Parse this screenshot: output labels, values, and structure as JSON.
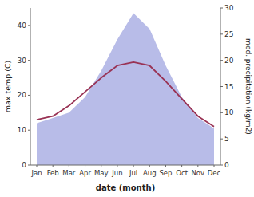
{
  "chart_data": {
    "type": "line",
    "xlabel": "date (month)",
    "ylabel": "max temp (C)",
    "y2label": "med. precipitation (kg/m2)",
    "categories": [
      "Jan",
      "Feb",
      "Mar",
      "Apr",
      "May",
      "Jun",
      "Jul",
      "Aug",
      "Sep",
      "Oct",
      "Nov",
      "Dec"
    ],
    "series": [
      {
        "type": "area",
        "axis": "y2",
        "color": "#b8bce8",
        "values": [
          8,
          9,
          10,
          13,
          18,
          24,
          29,
          26,
          19,
          13,
          9,
          7
        ]
      },
      {
        "type": "line",
        "color": "#993355",
        "values": [
          13.0,
          14.0,
          17.0,
          21.0,
          25.0,
          28.5,
          29.5,
          28.5,
          24.0,
          19.0,
          14.0,
          11.0
        ]
      }
    ],
    "ylim": [
      0,
      45
    ],
    "yticks": [
      0,
      10,
      20,
      30,
      40
    ],
    "y2lim": [
      0,
      30
    ],
    "y2ticks": [
      0,
      5,
      10,
      15,
      20,
      25,
      30
    ],
    "grid": false
  }
}
